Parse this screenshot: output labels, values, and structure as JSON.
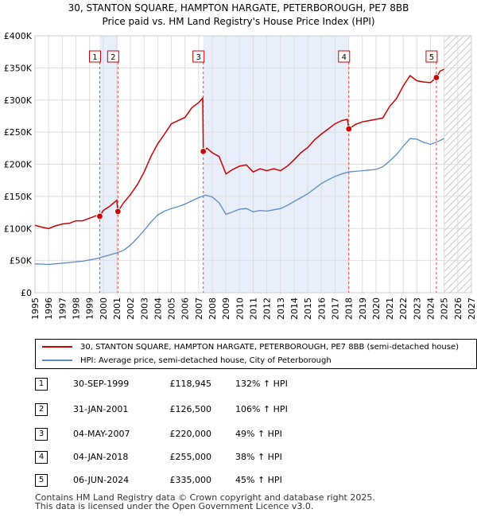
{
  "chart_data": {
    "type": "line",
    "title": "30, STANTON SQUARE, HAMPTON HARGATE, PETERBOROUGH, PE7 8BB",
    "subtitle": "Price paid vs. HM Land Registry's House Price Index (HPI)",
    "xlabel": "",
    "ylabel": "",
    "xlim": [
      1995,
      2027
    ],
    "ylim": [
      0,
      400000
    ],
    "x_ticks": [
      1995,
      1996,
      1997,
      1998,
      1999,
      2000,
      2001,
      2002,
      2003,
      2004,
      2005,
      2006,
      2007,
      2008,
      2009,
      2010,
      2011,
      2012,
      2013,
      2014,
      2015,
      2016,
      2017,
      2018,
      2019,
      2020,
      2021,
      2022,
      2023,
      2024,
      2025,
      2026,
      2027
    ],
    "y_ticks": [
      {
        "value": 0,
        "label": "£0"
      },
      {
        "value": 50000,
        "label": "£50K"
      },
      {
        "value": 100000,
        "label": "£100K"
      },
      {
        "value": 150000,
        "label": "£150K"
      },
      {
        "value": 200000,
        "label": "£200K"
      },
      {
        "value": 250000,
        "label": "£250K"
      },
      {
        "value": 300000,
        "label": "£300K"
      },
      {
        "value": 350000,
        "label": "£350K"
      },
      {
        "value": 400000,
        "label": "£400K"
      }
    ],
    "grid": true,
    "legend_position": "below",
    "shaded_ranges": [
      [
        1999.75,
        2001.08
      ],
      [
        2007.34,
        2018.01
      ]
    ],
    "future_hatch_from": 2025.0,
    "series": [
      {
        "name": "30, STANTON SQUARE, HAMPTON HARGATE, PETERBOROUGH, PE7 8BB (semi-detached house)",
        "color": "#cc0000",
        "x": [
          1995.0,
          1995.5,
          1996.0,
          1996.5,
          1997.0,
          1997.5,
          1998.0,
          1998.5,
          1999.0,
          1999.5,
          1999.75,
          2000.0,
          2000.5,
          2001.0,
          2001.08,
          2001.5,
          2002.0,
          2002.5,
          2003.0,
          2003.5,
          2004.0,
          2004.5,
          2005.0,
          2005.5,
          2006.0,
          2006.5,
          2007.0,
          2007.3,
          2007.34,
          2007.6,
          2008.0,
          2008.5,
          2009.0,
          2009.5,
          2010.0,
          2010.5,
          2011.0,
          2011.5,
          2012.0,
          2012.5,
          2013.0,
          2013.5,
          2014.0,
          2014.5,
          2015.0,
          2015.5,
          2016.0,
          2016.5,
          2017.0,
          2017.5,
          2017.9,
          2018.01,
          2018.5,
          2019.0,
          2019.5,
          2020.0,
          2020.5,
          2021.0,
          2021.5,
          2022.0,
          2022.5,
          2023.0,
          2023.5,
          2024.0,
          2024.43,
          2024.7,
          2025.0
        ],
        "values": [
          105000,
          102000,
          100000,
          104000,
          107000,
          108000,
          112000,
          112000,
          116000,
          120000,
          118945,
          128000,
          135000,
          144000,
          126500,
          140000,
          153000,
          168000,
          188000,
          212000,
          232000,
          247000,
          263000,
          268000,
          273000,
          288000,
          296000,
          303000,
          220000,
          225000,
          218000,
          212000,
          185000,
          192000,
          197000,
          199000,
          188000,
          193000,
          190000,
          193000,
          190000,
          197000,
          207000,
          218000,
          226000,
          238000,
          247000,
          255000,
          263000,
          268000,
          270000,
          255000,
          262000,
          266000,
          268000,
          270000,
          272000,
          290000,
          302000,
          322000,
          338000,
          330000,
          328000,
          327000,
          335000,
          345000,
          348000
        ]
      },
      {
        "name": "HPI: Average price, semi-detached house, City of Peterborough",
        "color": "#5b8ac8",
        "x": [
          1995.0,
          1995.5,
          1996.0,
          1996.5,
          1997.0,
          1997.5,
          1998.0,
          1998.5,
          1999.0,
          1999.5,
          2000.0,
          2000.5,
          2001.0,
          2001.5,
          2002.0,
          2002.5,
          2003.0,
          2003.5,
          2004.0,
          2004.5,
          2005.0,
          2005.5,
          2006.0,
          2006.5,
          2007.0,
          2007.5,
          2008.0,
          2008.5,
          2009.0,
          2009.5,
          2010.0,
          2010.5,
          2011.0,
          2011.5,
          2012.0,
          2012.5,
          2013.0,
          2013.5,
          2014.0,
          2014.5,
          2015.0,
          2015.5,
          2016.0,
          2016.5,
          2017.0,
          2017.5,
          2018.0,
          2018.5,
          2019.0,
          2019.5,
          2020.0,
          2020.5,
          2021.0,
          2021.5,
          2022.0,
          2022.5,
          2023.0,
          2023.5,
          2024.0,
          2024.5,
          2025.0
        ],
        "values": [
          45000,
          44500,
          44000,
          45000,
          46000,
          47000,
          48000,
          49000,
          51000,
          53000,
          56000,
          59000,
          62000,
          66000,
          74000,
          85000,
          97000,
          110000,
          121000,
          127000,
          131000,
          134000,
          138000,
          143000,
          148000,
          152000,
          149000,
          140000,
          122000,
          126000,
          130000,
          131000,
          126000,
          128000,
          127000,
          129000,
          131000,
          136000,
          142000,
          148000,
          154000,
          162000,
          170000,
          176000,
          181000,
          185000,
          188000,
          189000,
          190000,
          191000,
          192000,
          196000,
          205000,
          215000,
          228000,
          240000,
          239000,
          234000,
          231000,
          235000,
          240000
        ]
      }
    ],
    "markers": [
      {
        "label": "1",
        "x": 1999.75,
        "y": 118945
      },
      {
        "label": "2",
        "x": 2001.08,
        "y": 126500
      },
      {
        "label": "3",
        "x": 2007.34,
        "y": 220000
      },
      {
        "label": "4",
        "x": 2018.01,
        "y": 255000
      },
      {
        "label": "5",
        "x": 2024.43,
        "y": 335000
      }
    ]
  },
  "legend": [
    {
      "label": "30, STANTON SQUARE, HAMPTON HARGATE, PETERBOROUGH, PE7 8BB (semi-detached house)",
      "color": "#cc0000"
    },
    {
      "label": "HPI: Average price, semi-detached house, City of Peterborough",
      "color": "#5b8ac8"
    }
  ],
  "sales": [
    {
      "num": "1",
      "date": "30-SEP-1999",
      "price": "£118,945",
      "hpi": "132% ↑ HPI"
    },
    {
      "num": "2",
      "date": "31-JAN-2001",
      "price": "£126,500",
      "hpi": "106% ↑ HPI"
    },
    {
      "num": "3",
      "date": "04-MAY-2007",
      "price": "£220,000",
      "hpi": "49% ↑ HPI"
    },
    {
      "num": "4",
      "date": "04-JAN-2018",
      "price": "£255,000",
      "hpi": "38% ↑ HPI"
    },
    {
      "num": "5",
      "date": "06-JUN-2024",
      "price": "£335,000",
      "hpi": "45% ↑ HPI"
    }
  ],
  "footer": {
    "line1": "Contains HM Land Registry data © Crown copyright and database right 2025.",
    "line2": "This data is licensed under the Open Government Licence v3.0."
  }
}
